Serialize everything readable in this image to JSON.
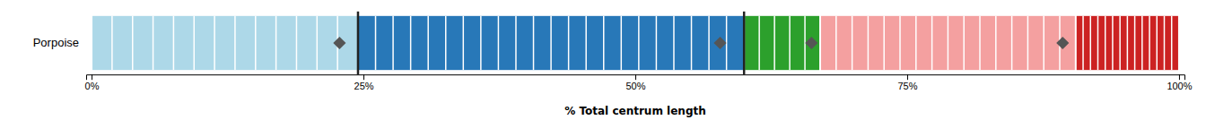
{
  "chart_data": {
    "type": "bar",
    "orientation": "horizontal",
    "stacked": true,
    "xlabel": "% Total centrum length",
    "categories": [
      "Porpoise"
    ],
    "series": [
      {
        "color": "#add8e8",
        "values": [
          0.245
        ],
        "counts": [
          13
        ]
      },
      {
        "color": "#2878b8",
        "values": [
          0.355
        ],
        "counts": [
          22
        ]
      },
      {
        "color": "#2ca02c",
        "values": [
          0.07
        ],
        "counts": [
          5
        ]
      },
      {
        "color": "#f4a0a0",
        "values": [
          0.235
        ],
        "counts": [
          16
        ]
      },
      {
        "color": "#cc2222",
        "values": [
          0.095
        ],
        "counts": [
          14
        ]
      }
    ],
    "vlines": [
      0.245,
      0.6
    ],
    "diamonds": [
      0.228,
      0.578,
      0.662,
      0.893
    ],
    "xlim": [
      -0.005,
      1.005
    ],
    "xticks": [
      {
        "value": 0.0,
        "label": "0%"
      },
      {
        "value": 0.25,
        "label": "25%"
      },
      {
        "value": 0.5,
        "label": "50%"
      },
      {
        "value": 0.75,
        "label": "75%"
      },
      {
        "value": 1.0,
        "label": "100%"
      }
    ]
  }
}
